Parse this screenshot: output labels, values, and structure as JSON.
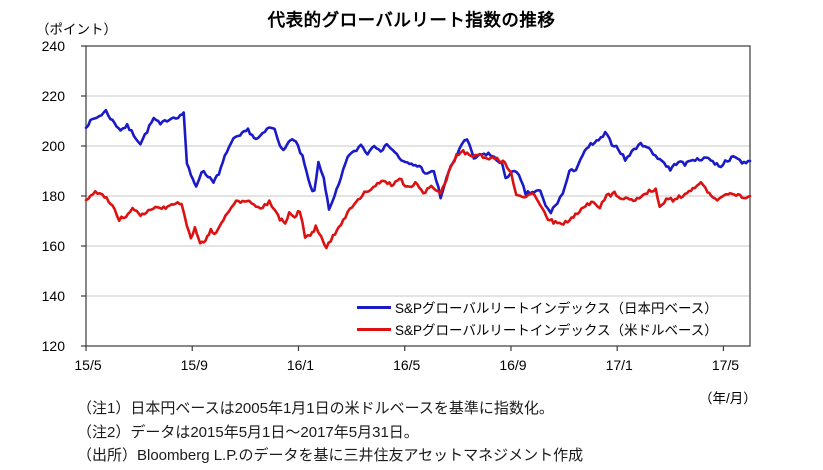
{
  "header": {
    "title": "代表的グローバルリート指数の推移",
    "y_axis_unit": "（ポイント）",
    "x_axis_unit": "（年/月）"
  },
  "notes": {
    "note1": "（注1）日本円ベースは2005年1月1日の米ドルベースを基準に指数化。",
    "note2": "（注2）データは2015年5月1日～2017年5月31日。",
    "source": "（出所）Bloomberg L.P.のデータを基に三井住友アセットマネジメント作成"
  },
  "chart_data": {
    "type": "line",
    "title": "代表的グローバルリート指数の推移",
    "ylabel": "（ポイント）",
    "xlabel": "（年/月）",
    "ylim": [
      120,
      240
    ],
    "y_ticks": [
      240,
      220,
      200,
      180,
      160,
      140,
      120
    ],
    "x_range_months": [
      0,
      25
    ],
    "x_ticks": [
      {
        "month": 0,
        "label": "15/5"
      },
      {
        "month": 4,
        "label": "15/9"
      },
      {
        "month": 8,
        "label": "16/1"
      },
      {
        "month": 12,
        "label": "16/5"
      },
      {
        "month": 16,
        "label": "16/9"
      },
      {
        "month": 20,
        "label": "17/1"
      },
      {
        "month": 24,
        "label": "17/5"
      }
    ],
    "grid": "horizontal-only",
    "legend_position": "inside-bottom-right",
    "axis_color": "#3a3a3a",
    "grid_color": "#c8c8c8",
    "series": [
      {
        "name": "S&Pグローバルリートインデックス（日本円ベース）",
        "color": "#1a1ac8",
        "points": [
          [
            0,
            208
          ],
          [
            0.25,
            210.5
          ],
          [
            0.5,
            212
          ],
          [
            0.75,
            214
          ],
          [
            1,
            210
          ],
          [
            1.3,
            206.5
          ],
          [
            1.55,
            208
          ],
          [
            1.8,
            204.5
          ],
          [
            2.05,
            201
          ],
          [
            2.3,
            206
          ],
          [
            2.55,
            211
          ],
          [
            2.8,
            208.5
          ],
          [
            3.05,
            210.5
          ],
          [
            3.3,
            211.5
          ],
          [
            3.55,
            212
          ],
          [
            3.68,
            213.5
          ],
          [
            3.8,
            193
          ],
          [
            3.95,
            188
          ],
          [
            4.15,
            184
          ],
          [
            4.35,
            190
          ],
          [
            4.6,
            188
          ],
          [
            4.8,
            186
          ],
          [
            5,
            188.5
          ],
          [
            5.3,
            198
          ],
          [
            5.55,
            202.5
          ],
          [
            5.8,
            204
          ],
          [
            6.1,
            206.5
          ],
          [
            6.4,
            202.5
          ],
          [
            6.65,
            204.5
          ],
          [
            6.9,
            207.5
          ],
          [
            7.1,
            206.5
          ],
          [
            7.3,
            200.5
          ],
          [
            7.5,
            198.5
          ],
          [
            7.7,
            203
          ],
          [
            7.9,
            201.5
          ],
          [
            8.15,
            195.5
          ],
          [
            8.45,
            183.5
          ],
          [
            8.6,
            181.5
          ],
          [
            8.75,
            193.5
          ],
          [
            8.95,
            187.5
          ],
          [
            9.15,
            174
          ],
          [
            9.35,
            179.5
          ],
          [
            9.6,
            187
          ],
          [
            9.85,
            196
          ],
          [
            10.1,
            197.5
          ],
          [
            10.35,
            200.5
          ],
          [
            10.6,
            197
          ],
          [
            10.85,
            200.5
          ],
          [
            11.1,
            198.5
          ],
          [
            11.4,
            200.5
          ],
          [
            11.7,
            196.5
          ],
          [
            11.95,
            193.5
          ],
          [
            12.25,
            192.5
          ],
          [
            12.55,
            192
          ],
          [
            12.85,
            188.5
          ],
          [
            13.1,
            190
          ],
          [
            13.35,
            179.5
          ],
          [
            13.65,
            189.5
          ],
          [
            13.9,
            195
          ],
          [
            14.15,
            201
          ],
          [
            14.35,
            202.5
          ],
          [
            14.6,
            195
          ],
          [
            14.9,
            196.5
          ],
          [
            15.15,
            197
          ],
          [
            15.45,
            194.5
          ],
          [
            15.65,
            193.5
          ],
          [
            15.8,
            186.5
          ],
          [
            16.05,
            190.5
          ],
          [
            16.3,
            188
          ],
          [
            16.55,
            181
          ],
          [
            16.8,
            181.5
          ],
          [
            17.1,
            182
          ],
          [
            17.3,
            176
          ],
          [
            17.5,
            173.5
          ],
          [
            17.75,
            177.5
          ],
          [
            17.95,
            181
          ],
          [
            18.2,
            189.5
          ],
          [
            18.45,
            191
          ],
          [
            18.7,
            196.5
          ],
          [
            19,
            200.5
          ],
          [
            19.3,
            202
          ],
          [
            19.55,
            205
          ],
          [
            19.8,
            201
          ],
          [
            20.05,
            199
          ],
          [
            20.3,
            194.5
          ],
          [
            20.55,
            197.5
          ],
          [
            20.8,
            200.5
          ],
          [
            21.05,
            200.5
          ],
          [
            21.35,
            197
          ],
          [
            21.7,
            194
          ],
          [
            22,
            190.5
          ],
          [
            22.3,
            194
          ],
          [
            22.55,
            192.5
          ],
          [
            22.85,
            195
          ],
          [
            23.1,
            194
          ],
          [
            23.35,
            196
          ],
          [
            23.6,
            193.5
          ],
          [
            23.9,
            192
          ],
          [
            24.15,
            194.5
          ],
          [
            24.45,
            195.5
          ],
          [
            24.7,
            193.5
          ],
          [
            25,
            194
          ]
        ]
      },
      {
        "name": "S&Pグローバルリートインデックス（米ドルベース）",
        "color": "#dc1111",
        "points": [
          [
            0,
            178
          ],
          [
            0.35,
            182
          ],
          [
            0.7,
            179.5
          ],
          [
            1,
            176.5
          ],
          [
            1.25,
            170.5
          ],
          [
            1.5,
            172
          ],
          [
            1.75,
            175.5
          ],
          [
            2.05,
            171.5
          ],
          [
            2.35,
            174.5
          ],
          [
            2.7,
            176
          ],
          [
            3,
            175
          ],
          [
            3.3,
            176.5
          ],
          [
            3.6,
            177.5
          ],
          [
            3.8,
            168
          ],
          [
            3.95,
            163.5
          ],
          [
            4.1,
            167.5
          ],
          [
            4.3,
            160.5
          ],
          [
            4.5,
            162
          ],
          [
            4.7,
            166.5
          ],
          [
            4.9,
            165
          ],
          [
            5.1,
            169
          ],
          [
            5.4,
            174
          ],
          [
            5.65,
            177.5
          ],
          [
            5.9,
            178
          ],
          [
            6.15,
            178.5
          ],
          [
            6.4,
            175
          ],
          [
            6.65,
            175.5
          ],
          [
            6.9,
            177.5
          ],
          [
            7.1,
            175
          ],
          [
            7.3,
            170.5
          ],
          [
            7.5,
            169.5
          ],
          [
            7.65,
            173
          ],
          [
            7.85,
            171.5
          ],
          [
            8.05,
            174
          ],
          [
            8.25,
            164
          ],
          [
            8.45,
            164.5
          ],
          [
            8.65,
            167.5
          ],
          [
            8.85,
            164
          ],
          [
            9.05,
            159.5
          ],
          [
            9.3,
            164
          ],
          [
            9.6,
            169
          ],
          [
            9.85,
            173
          ],
          [
            10.1,
            177
          ],
          [
            10.4,
            180.5
          ],
          [
            10.65,
            182.5
          ],
          [
            10.9,
            184
          ],
          [
            11.2,
            186
          ],
          [
            11.5,
            184.5
          ],
          [
            11.8,
            187
          ],
          [
            12.1,
            183.5
          ],
          [
            12.4,
            185
          ],
          [
            12.7,
            181
          ],
          [
            13,
            184
          ],
          [
            13.35,
            180.5
          ],
          [
            13.65,
            189
          ],
          [
            13.95,
            196.5
          ],
          [
            14.2,
            198
          ],
          [
            14.5,
            195.5
          ],
          [
            14.8,
            196.5
          ],
          [
            15.1,
            194.5
          ],
          [
            15.4,
            195
          ],
          [
            15.7,
            193.5
          ],
          [
            16,
            190
          ],
          [
            16.2,
            180
          ],
          [
            16.5,
            179
          ],
          [
            16.8,
            181
          ],
          [
            17.1,
            177
          ],
          [
            17.4,
            171
          ],
          [
            17.6,
            169.5
          ],
          [
            17.9,
            168.5
          ],
          [
            18.2,
            170.5
          ],
          [
            18.5,
            173
          ],
          [
            18.8,
            176.5
          ],
          [
            19.1,
            177.5
          ],
          [
            19.35,
            175.5
          ],
          [
            19.6,
            180
          ],
          [
            19.9,
            181
          ],
          [
            20.1,
            178.5
          ],
          [
            20.4,
            179.5
          ],
          [
            20.6,
            177.5
          ],
          [
            20.9,
            180
          ],
          [
            21.2,
            182
          ],
          [
            21.45,
            183
          ],
          [
            21.6,
            175
          ],
          [
            21.85,
            179
          ],
          [
            22.1,
            178.5
          ],
          [
            22.4,
            180
          ],
          [
            22.7,
            182
          ],
          [
            23,
            184.5
          ],
          [
            23.15,
            185
          ],
          [
            23.4,
            181.5
          ],
          [
            23.6,
            179.5
          ],
          [
            23.85,
            178.5
          ],
          [
            24.1,
            180.5
          ],
          [
            24.4,
            181
          ],
          [
            24.7,
            179.5
          ],
          [
            25,
            180
          ]
        ]
      }
    ]
  }
}
